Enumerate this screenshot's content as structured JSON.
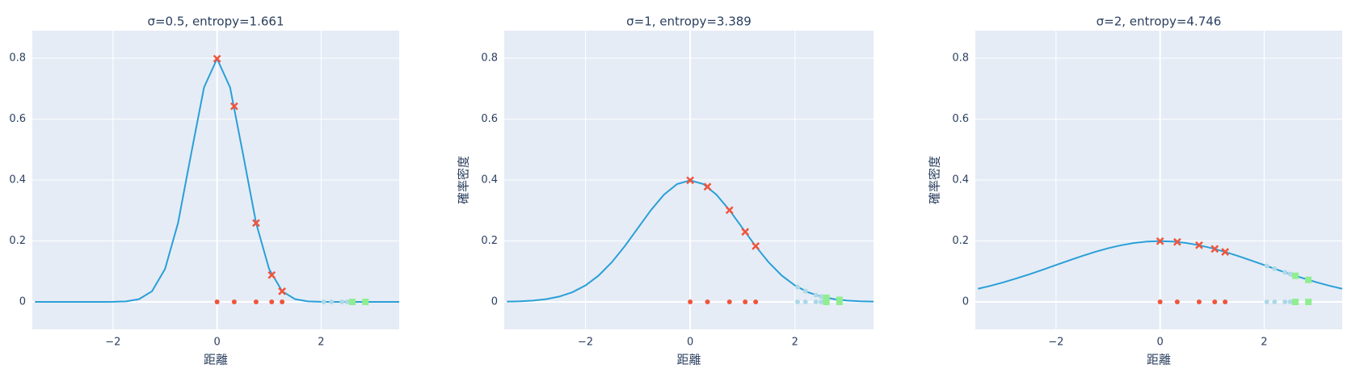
{
  "chart_data": [
    {
      "type": "line",
      "title": "σ=0.5, entropy=1.661",
      "xlabel": "距離",
      "xlim": [
        -3.55,
        3.5
      ],
      "ylim": [
        -0.09,
        0.89
      ],
      "xticks": [
        {
          "value": -2,
          "label": "−2"
        },
        0,
        2
      ],
      "yticks": [
        0,
        0.2,
        0.4,
        0.6,
        0.8
      ],
      "grid": true,
      "series": [
        {
          "marker": "line",
          "color": "#2a9fd7",
          "x": [
            -3.5,
            -3.25,
            -3,
            -2.75,
            -2.5,
            -2.25,
            -2,
            -1.75,
            -1.5,
            -1.25,
            -1,
            -0.75,
            -0.5,
            -0.25,
            0,
            0.25,
            0.5,
            0.75,
            1,
            1.25,
            1.5,
            1.75,
            2,
            2.25,
            2.5,
            2.75,
            3,
            3.25,
            3.5
          ],
          "values": [
            0,
            0,
            0,
            0,
            0,
            0,
            0.0003,
            0.0017,
            0.0089,
            0.035,
            0.108,
            0.259,
            0.4839,
            0.7042,
            0.7979,
            0.7042,
            0.4839,
            0.259,
            0.108,
            0.035,
            0.0089,
            0.0017,
            0.0003,
            0,
            0,
            0,
            0,
            0,
            0
          ]
        },
        {
          "marker": "x",
          "color": "#ef553b",
          "x": [
            0,
            0.33,
            0.75,
            1.05,
            1.25
          ],
          "values": [
            0.798,
            0.642,
            0.259,
            0.088,
            0.035
          ]
        },
        {
          "marker": "dot",
          "color": "#ef553b",
          "x": [
            0,
            0.33,
            0.75,
            1.05,
            1.25
          ],
          "values": [
            0,
            0,
            0,
            0,
            0
          ]
        },
        {
          "marker": "dot",
          "color": "#add8e6",
          "x": [
            2.05,
            2.2,
            2.4,
            2.5,
            2.55
          ],
          "values": [
            0,
            0,
            0,
            0,
            0
          ]
        },
        {
          "marker": "square",
          "color": "#90ee90",
          "x": [
            2.6,
            2.85
          ],
          "values": [
            0,
            0
          ]
        }
      ]
    },
    {
      "type": "line",
      "title": "σ=1, entropy=3.389",
      "xlabel": "距離",
      "ylabel": "確率密度",
      "xlim": [
        -3.55,
        3.5
      ],
      "ylim": [
        -0.09,
        0.89
      ],
      "xticks": [
        {
          "value": -2,
          "label": "−2"
        },
        0,
        2
      ],
      "yticks": [
        0,
        0.2,
        0.4,
        0.6,
        0.8
      ],
      "grid": true,
      "series": [
        {
          "marker": "line",
          "color": "#2a9fd7",
          "x": [
            -3.5,
            -3.25,
            -3,
            -2.75,
            -2.5,
            -2.25,
            -2,
            -1.75,
            -1.5,
            -1.25,
            -1,
            -0.75,
            -0.5,
            -0.25,
            0,
            0.25,
            0.5,
            0.75,
            1,
            1.25,
            1.5,
            1.75,
            2,
            2.25,
            2.5,
            2.75,
            3,
            3.25,
            3.5
          ],
          "values": [
            0.0009,
            0.002,
            0.0044,
            0.0091,
            0.0175,
            0.0317,
            0.054,
            0.0863,
            0.1295,
            0.1826,
            0.242,
            0.3011,
            0.3521,
            0.3867,
            0.3989,
            0.3867,
            0.3521,
            0.3011,
            0.242,
            0.1826,
            0.1295,
            0.0863,
            0.054,
            0.0317,
            0.0175,
            0.0091,
            0.0044,
            0.002,
            0.0009
          ]
        },
        {
          "marker": "x",
          "color": "#ef553b",
          "x": [
            0,
            0.33,
            0.75,
            1.05,
            1.25
          ],
          "values": [
            0.399,
            0.378,
            0.301,
            0.23,
            0.183
          ]
        },
        {
          "marker": "dot",
          "color": "#ef553b",
          "x": [
            0,
            0.33,
            0.75,
            1.05,
            1.25
          ],
          "values": [
            0,
            0,
            0,
            0,
            0
          ]
        },
        {
          "marker": "dot",
          "color": "#add8e6",
          "x": [
            2.05,
            2.2,
            2.4,
            2.5,
            2.55
          ],
          "values": [
            0.0488,
            0.0355,
            0.0224,
            0.0175,
            0.0154
          ]
        },
        {
          "marker": "dot",
          "color": "#add8e6",
          "x": [
            2.05,
            2.2,
            2.4,
            2.5,
            2.55
          ],
          "values": [
            0,
            0,
            0,
            0,
            0
          ]
        },
        {
          "marker": "square",
          "color": "#90ee90",
          "x": [
            2.6,
            2.85
          ],
          "values": [
            0.0136,
            0.0069
          ]
        },
        {
          "marker": "square",
          "color": "#90ee90",
          "x": [
            2.6,
            2.85
          ],
          "values": [
            0,
            0
          ]
        }
      ]
    },
    {
      "type": "line",
      "title": "σ=2, entropy=4.746",
      "xlabel": "距離",
      "ylabel": "確率密度",
      "xlim": [
        -3.55,
        3.5
      ],
      "ylim": [
        -0.09,
        0.89
      ],
      "xticks": [
        {
          "value": -2,
          "label": "−2"
        },
        0,
        2
      ],
      "yticks": [
        0,
        0.2,
        0.4,
        0.6,
        0.8
      ],
      "grid": true,
      "series": [
        {
          "marker": "line",
          "color": "#2a9fd7",
          "x": [
            -3.5,
            -3.25,
            -3,
            -2.75,
            -2.5,
            -2.25,
            -2,
            -1.75,
            -1.5,
            -1.25,
            -1,
            -0.75,
            -0.5,
            -0.25,
            0,
            0.25,
            0.5,
            0.75,
            1,
            1.25,
            1.5,
            1.75,
            2,
            2.25,
            2.5,
            2.75,
            3,
            3.25,
            3.5
          ],
          "values": [
            0.0431,
            0.0532,
            0.0648,
            0.0776,
            0.0913,
            0.1059,
            0.121,
            0.136,
            0.1506,
            0.1641,
            0.176,
            0.186,
            0.1933,
            0.1979,
            0.1995,
            0.1979,
            0.1933,
            0.186,
            0.176,
            0.1641,
            0.1506,
            0.136,
            0.121,
            0.1059,
            0.0913,
            0.0776,
            0.0648,
            0.0532,
            0.0431
          ]
        },
        {
          "marker": "x",
          "color": "#ef553b",
          "x": [
            0,
            0.33,
            0.75,
            1.05,
            1.25
          ],
          "values": [
            0.1995,
            0.1968,
            0.186,
            0.1738,
            0.1641
          ]
        },
        {
          "marker": "dot",
          "color": "#ef553b",
          "x": [
            0,
            0.33,
            0.75,
            1.05,
            1.25
          ],
          "values": [
            0,
            0,
            0,
            0,
            0
          ]
        },
        {
          "marker": "dot",
          "color": "#add8e6",
          "x": [
            2.05,
            2.2,
            2.4,
            2.5,
            2.55
          ],
          "values": [
            0.1179,
            0.1089,
            0.0971,
            0.0913,
            0.0883
          ]
        },
        {
          "marker": "dot",
          "color": "#add8e6",
          "x": [
            2.05,
            2.2,
            2.4,
            2.5,
            2.55
          ],
          "values": [
            0,
            0,
            0,
            0,
            0
          ]
        },
        {
          "marker": "square",
          "color": "#90ee90",
          "x": [
            2.6,
            2.85
          ],
          "values": [
            0.0857,
            0.0722
          ]
        },
        {
          "marker": "square",
          "color": "#90ee90",
          "x": [
            2.6,
            2.85
          ],
          "values": [
            0,
            0
          ]
        }
      ]
    }
  ]
}
